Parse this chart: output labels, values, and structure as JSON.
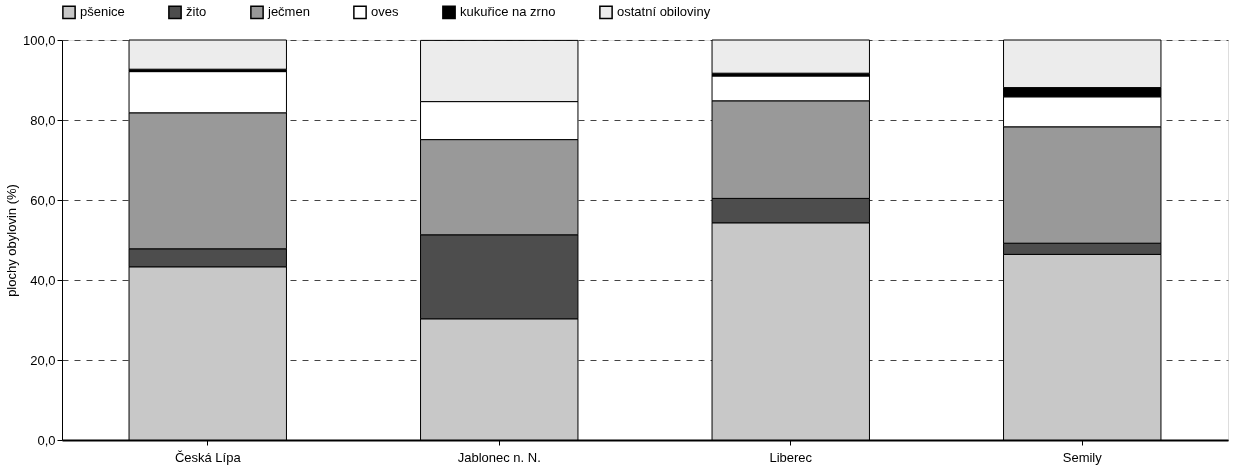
{
  "chart_data": {
    "type": "bar",
    "stacked": true,
    "ylabel": "plochy obylovin (%)",
    "categories": [
      "Česká Lípa",
      "Jablonec n. N.",
      "Liberec",
      "Semily"
    ],
    "series": [
      {
        "name": "pšenice",
        "color": "#c8c8c8",
        "values": [
          43.3,
          30.3,
          54.3,
          46.4
        ]
      },
      {
        "name": "žito",
        "color": "#4d4d4d",
        "values": [
          4.5,
          21.0,
          6.1,
          2.8
        ]
      },
      {
        "name": "ječmen",
        "color": "#999999",
        "values": [
          34.0,
          23.8,
          24.4,
          29.1
        ]
      },
      {
        "name": "oves",
        "color": "#ffffff",
        "values": [
          10.3,
          9.5,
          6.2,
          7.5
        ]
      },
      {
        "name": "kukuřice na zrno",
        "color": "#000000",
        "values": [
          0.6,
          null,
          0.7,
          2.3
        ]
      },
      {
        "name": "ostatní obiloviny",
        "color": "#ececec",
        "values": [
          7.3,
          15.3,
          8.3,
          11.9
        ]
      }
    ],
    "ylim": [
      0,
      100
    ],
    "yticks": [
      {
        "value": 0,
        "label": "0,0"
      },
      {
        "value": 20,
        "label": "20,0"
      },
      {
        "value": 40,
        "label": "40,0"
      },
      {
        "value": 60,
        "label": "60,0"
      },
      {
        "value": 80,
        "label": "80,0"
      },
      {
        "value": 100,
        "label": "100,0"
      }
    ],
    "grid": "y",
    "legend": "top"
  }
}
